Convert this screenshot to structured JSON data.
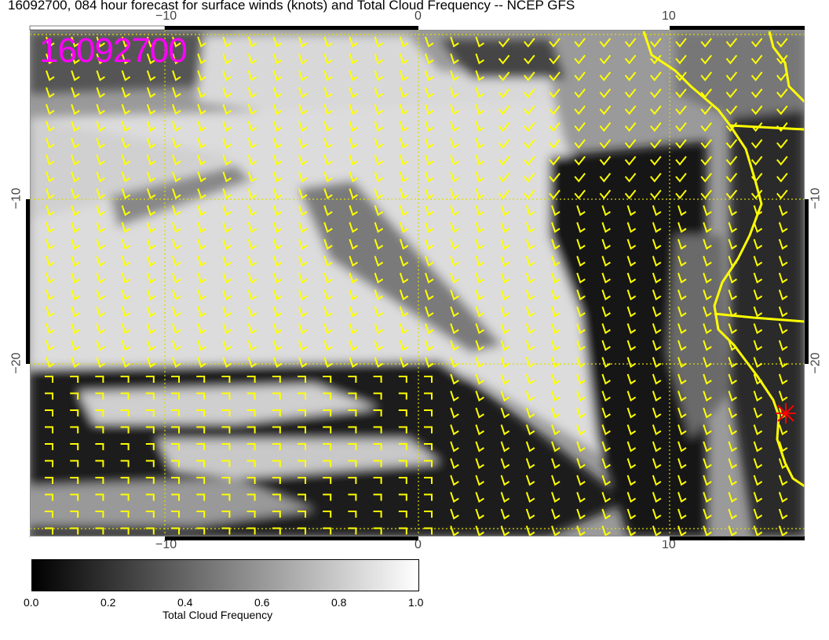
{
  "title": "16092700, 084 hour forecast for surface winds (knots) and Total Cloud Frequency -- NCEP GFS",
  "stamp": "16092700",
  "axes": {
    "x_ticks": [
      "−10",
      "0",
      "10"
    ],
    "y_ticks_left": [
      "−10",
      "−20"
    ],
    "y_ticks_right": [
      "−10",
      "−20"
    ],
    "lon_range": [
      -15.4,
      15.3
    ],
    "lat_range": [
      -30.5,
      0.4
    ]
  },
  "colorbar": {
    "label": "Total Cloud Frequency",
    "ticks": [
      "0.0",
      "0.2",
      "0.4",
      "0.6",
      "0.8",
      "1.0"
    ],
    "range": [
      0,
      1
    ],
    "colors": [
      "#000000",
      "#ffffff"
    ]
  },
  "colors": {
    "wind_barbs": "#ffff00",
    "coastline": "#ffff00",
    "stamp": "#ff00ff",
    "marker": "#ff0000"
  },
  "marker": {
    "icon": "red-star",
    "lon": 14.5,
    "lat": -22.9
  }
}
